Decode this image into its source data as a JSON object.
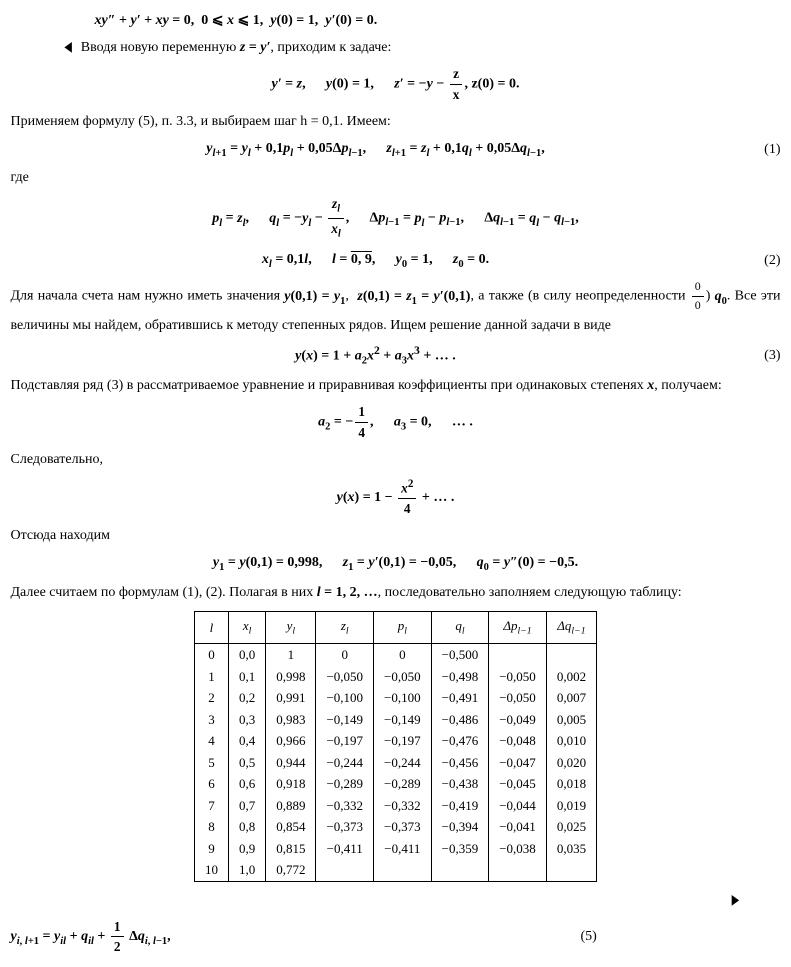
{
  "line_ode": "xy″ + y′ + xy = 0,  0 ⩽ x ⩽ 1,  y(0) = 1,  y′(0) = 0.",
  "line_subst_marker": "◀",
  "line_subst_a": "Вводя новую переменную ",
  "line_subst_b": "z = y′",
  "line_subst_c": ", приходим к задаче:",
  "eq_system": "y′ = z,    y(0) = 1,    z′ = −y − ",
  "eq_system_frac_num": "z",
  "eq_system_frac_den": "x",
  "eq_system_tail": ",    z(0) = 0.",
  "para_apply": "Применяем формулу (5), п. 3.3, и выбираем шаг h = 0,1. Имеем:",
  "eq1": "y_{l+1} = y_l + 0,1p_l + 0,05Δp_{l−1},    z_{l+1} = z_l + 0,1q_l + 0,05Δq_{l−1},",
  "eq1_num": "(1)",
  "word_where": "где",
  "eq_pq_a": "p_l = z_l,    q_l = −y_l − ",
  "eq_pq_frac_num": "z_l",
  "eq_pq_frac_den": "x_l",
  "eq_pq_b": ",    Δp_{l−1} = p_l − p_{l−1},    Δq_{l−1} = q_l − q_{l−1},",
  "eq2_a": "x_l = 0,1l,    l = ",
  "eq2_overline": "0, 9",
  "eq2_b": ",    y_0 = 1,    z_0 = 0.",
  "eq2_num": "(2)",
  "para_start_a": "Для начала счета нам нужно иметь значения y(0,1) = y_1,  z(0,1) = z_1 = y′(0,1), а также (в силу неопределенности ",
  "frac00_num": "0",
  "frac00_den": "0",
  "para_start_b": ") q_0. Все эти величины мы найдем, обратившись к методу степенных рядов. Ищем решение данной задачи в виде",
  "eq3": "y(x) = 1 + a_2x² + a_3x³ + … .",
  "eq3_num": "(3)",
  "para_coeff": "Подставляя ряд (3) в рассматриваемое уравнение и приравнивая коэффициенты при одинаковых степенях x, получаем:",
  "eq_coeffs_a": "a_2 = −",
  "eq_coeffs_frac_num": "1",
  "eq_coeffs_frac_den": "4",
  "eq_coeffs_b": ",    a_3 = 0,    … .",
  "word_therefore": "Следовательно,",
  "eq_yx_a": "y(x) = 1 − ",
  "eq_yx_frac_num": "x²",
  "eq_yx_frac_den": "4",
  "eq_yx_b": " + … .",
  "word_hence": "Отсюда находим",
  "eq_y1": "y_1 = y(0,1) = 0,998,    z_1 = y′(0,1) = −0,05,    q_0 = y″(0) = −0,5.",
  "para_next": "Далее считаем по формулам (1), (2). Полагая в них l = 1, 2, …, последовательно заполняем следующую таблицу:",
  "table": {
    "headers": [
      "l",
      "x_l",
      "y_l",
      "z_l",
      "p_l",
      "q_l",
      "Δp_{l−1}",
      "Δq_{l−1}"
    ],
    "rows": [
      [
        "0",
        "0,0",
        "1",
        "0",
        "0",
        "−0,500",
        "",
        ""
      ],
      [
        "1",
        "0,1",
        "0,998",
        "−0,050",
        "−0,050",
        "−0,498",
        "−0,050",
        "0,002"
      ],
      [
        "2",
        "0,2",
        "0,991",
        "−0,100",
        "−0,100",
        "−0,491",
        "−0,050",
        "0,007"
      ],
      [
        "3",
        "0,3",
        "0,983",
        "−0,149",
        "−0,149",
        "−0,486",
        "−0,049",
        "0,005"
      ],
      [
        "4",
        "0,4",
        "0,966",
        "−0,197",
        "−0,197",
        "−0,476",
        "−0,048",
        "0,010"
      ],
      [
        "5",
        "0,5",
        "0,944",
        "−0,244",
        "−0,244",
        "−0,456",
        "−0,047",
        "0,020"
      ],
      [
        "6",
        "0,6",
        "0,918",
        "−0,289",
        "−0,289",
        "−0,438",
        "−0,045",
        "0,018"
      ],
      [
        "7",
        "0,7",
        "0,889",
        "−0,332",
        "−0,332",
        "−0,419",
        "−0,044",
        "0,019"
      ],
      [
        "8",
        "0,8",
        "0,854",
        "−0,373",
        "−0,373",
        "−0,394",
        "−0,041",
        "0,025"
      ],
      [
        "9",
        "0,9",
        "0,815",
        "−0,411",
        "−0,411",
        "−0,359",
        "−0,038",
        "0,035"
      ],
      [
        "10",
        "1,0",
        "0,772",
        "",
        "",
        "",
        "",
        ""
      ]
    ]
  },
  "after_table_marker": "▶",
  "eq5_a": "y_{i, l+1} = y_{il} + q_{il} + ",
  "eq5_frac_num": "1",
  "eq5_frac_den": "2",
  "eq5_b": " Δq_{i, l−1},",
  "eq5_num": "(5)"
}
